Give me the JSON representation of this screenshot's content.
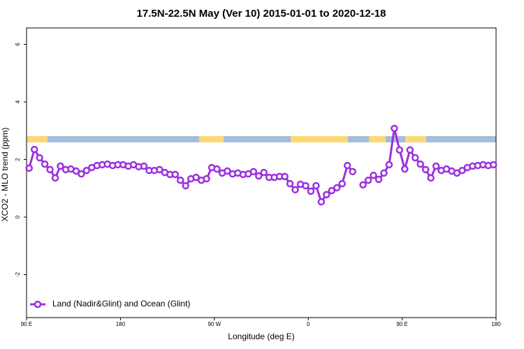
{
  "chart_data": {
    "type": "line",
    "title": "17.5N-22.5N May (Ver 10)   2015-01-01 to 2020-12-18",
    "xlabel": "Longitude (deg E)",
    "ylabel": "XCO2 - MLO trend (ppm)",
    "x": [
      92.5,
      97.5,
      102.5,
      107.5,
      112.5,
      117.5,
      122.5,
      127.5,
      132.5,
      137.5,
      142.5,
      147.5,
      152.5,
      157.5,
      162.5,
      167.5,
      172.5,
      177.5,
      182.5,
      187.5,
      192.5,
      197.5,
      202.5,
      207.5,
      212.5,
      217.5,
      222.5,
      227.5,
      232.5,
      237.5,
      242.5,
      247.5,
      252.5,
      257.5,
      262.5,
      267.5,
      272.5,
      277.5,
      282.5,
      287.5,
      292.5,
      297.5,
      302.5,
      307.5,
      312.5,
      317.5,
      322.5,
      327.5,
      332.5,
      337.5,
      342.5,
      347.5,
      352.5,
      357.5,
      362.5,
      367.5,
      372.5,
      377.5,
      382.5,
      387.5,
      392.5,
      397.5,
      402.5,
      407.5,
      412.5,
      417.5,
      422.5,
      427.5,
      432.5,
      437.5,
      442.5,
      447.5,
      452.5,
      457.5,
      462.5,
      467.5,
      472.5,
      477.5,
      482.5,
      487.5,
      492.5,
      497.5,
      502.5,
      507.5,
      512.5,
      517.5,
      522.5,
      527.5,
      532.5,
      537.5
    ],
    "series": [
      {
        "name": "Land (Nadir&Glint) and Ocean (Glint)",
        "color": "#9b30e0",
        "values": [
          1.7,
          2.35,
          2.06,
          1.84,
          1.65,
          1.36,
          1.77,
          1.65,
          1.67,
          1.6,
          1.5,
          1.62,
          1.72,
          1.79,
          1.82,
          1.84,
          1.79,
          1.82,
          1.82,
          1.77,
          1.82,
          1.75,
          1.77,
          1.62,
          1.62,
          1.65,
          1.55,
          1.48,
          1.48,
          1.28,
          1.09,
          1.33,
          1.38,
          1.28,
          1.33,
          1.72,
          1.67,
          1.53,
          1.6,
          1.5,
          1.53,
          1.48,
          1.5,
          1.58,
          1.43,
          1.55,
          1.38,
          1.38,
          1.41,
          1.41,
          1.16,
          0.95,
          1.14,
          1.09,
          0.9,
          1.09,
          0.53,
          0.78,
          0.92,
          1.02,
          1.16,
          1.79,
          1.58,
          null,
          1.12,
          1.28,
          1.45,
          1.31,
          1.53,
          1.82,
          3.08,
          2.33,
          1.67,
          2.33,
          2.06,
          1.84,
          1.65,
          1.36,
          1.77,
          1.62,
          1.67,
          1.6,
          1.53,
          1.62,
          1.72,
          1.77,
          1.79,
          1.82,
          1.79,
          1.82
        ]
      }
    ],
    "xlim": [
      90,
      540
    ],
    "xticks": [
      {
        "value": 90,
        "label": "90 E"
      },
      180,
      {
        "value": 270,
        "label": "90 W"
      },
      {
        "value": 360,
        "label": "0"
      },
      {
        "value": 450,
        "label": "90 E"
      },
      {
        "value": 540,
        "label": "180"
      }
    ],
    "ylim": [
      -3.49,
      6.57
    ],
    "yticks": [
      -2,
      0,
      2,
      4,
      6
    ],
    "legend": "bottom-left"
  }
}
